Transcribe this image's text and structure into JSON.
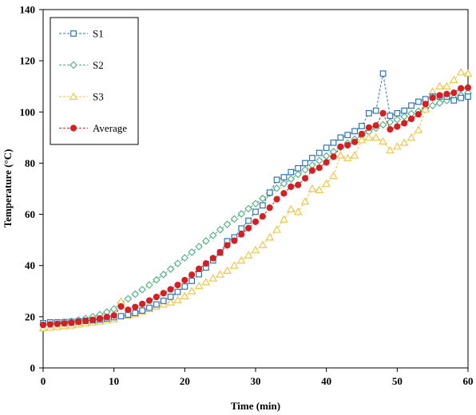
{
  "chart_data": {
    "type": "line",
    "xlabel": "Time (min)",
    "ylabel": "Temperature  (°C)",
    "xlim": [
      0,
      60
    ],
    "ylim": [
      0,
      140
    ],
    "xticks": [
      0,
      10,
      20,
      30,
      40,
      50,
      60
    ],
    "yticks": [
      0,
      20,
      40,
      60,
      80,
      100,
      120,
      140
    ],
    "grid": false,
    "legend": "top-left",
    "x": [
      0,
      1,
      2,
      3,
      4,
      5,
      6,
      7,
      8,
      9,
      10,
      11,
      12,
      13,
      14,
      15,
      16,
      17,
      18,
      19,
      20,
      21,
      22,
      23,
      24,
      25,
      26,
      27,
      28,
      29,
      30,
      31,
      32,
      33,
      34,
      35,
      36,
      37,
      38,
      39,
      40,
      41,
      42,
      43,
      44,
      45,
      46,
      47,
      48,
      49,
      50,
      51,
      52,
      53,
      54,
      55,
      56,
      57,
      58,
      59,
      60
    ],
    "series": [
      {
        "name": "S1",
        "color": "#2e75b6",
        "marker": "square",
        "values": [
          17.5,
          17.8,
          17.8,
          17.9,
          18.0,
          18.2,
          18.4,
          18.6,
          18.9,
          19.3,
          19.8,
          20.2,
          20.8,
          21.5,
          22.4,
          23.5,
          24.8,
          26.2,
          27.8,
          29.7,
          31.8,
          34.0,
          36.6,
          39.2,
          42.0,
          45.0,
          49.5,
          51.0,
          54.5,
          57.5,
          61.0,
          63.5,
          68.5,
          73.5,
          74.5,
          76.5,
          78.0,
          80.0,
          82.0,
          84.0,
          86.0,
          88.0,
          90.0,
          91.0,
          92.5,
          94.5,
          99.5,
          100.5,
          115.0,
          98.5,
          99.5,
          100.5,
          102.5,
          104.0,
          105.0,
          106.0,
          106.0,
          106.0,
          104.5,
          105.5,
          106.0
        ]
      },
      {
        "name": "S2",
        "color": "#4daf7c",
        "marker": "diamond",
        "values": [
          17.0,
          17.3,
          17.5,
          17.8,
          18.2,
          18.7,
          19.3,
          20.0,
          20.8,
          21.8,
          23.0,
          25.5,
          27.0,
          28.8,
          30.6,
          32.4,
          34.4,
          36.5,
          38.6,
          40.8,
          43.0,
          45.2,
          47.4,
          49.6,
          51.8,
          54.0,
          56.1,
          58.2,
          60.2,
          62.2,
          64.2,
          66.2,
          68.2,
          70.2,
          72.0,
          73.8,
          75.6,
          77.4,
          79.2,
          81.0,
          82.8,
          84.5,
          86.2,
          87.8,
          89.3,
          90.8,
          92.3,
          93.7,
          95.0,
          96.0,
          97.0,
          98.2,
          99.3,
          100.3,
          101.3,
          102.5,
          103.5,
          104.5,
          105.5,
          106.5,
          107.5
        ]
      },
      {
        "name": "S3",
        "color": "#f2c13a",
        "marker": "triangle",
        "values": [
          15.5,
          15.8,
          16.0,
          16.3,
          16.6,
          17.0,
          17.4,
          17.8,
          18.2,
          18.6,
          19.0,
          26.0,
          20.5,
          21.0,
          22.0,
          23.0,
          24.0,
          24.8,
          25.6,
          26.5,
          28.0,
          30.0,
          32.0,
          33.5,
          35.0,
          36.5,
          38.0,
          40.0,
          42.0,
          44.0,
          46.0,
          48.0,
          51.0,
          54.0,
          58.0,
          62.0,
          61.0,
          65.0,
          70.0,
          69.5,
          72.0,
          75.0,
          83.0,
          82.0,
          83.0,
          89.0,
          90.0,
          90.0,
          88.5,
          85.0,
          86.5,
          88.0,
          90.0,
          93.0,
          101.0,
          108.0,
          110.0,
          110.0,
          112.5,
          115.5,
          115.0
        ]
      },
      {
        "name": "Average",
        "color": "#d42020",
        "marker": "circle",
        "values": [
          16.8,
          17.0,
          17.2,
          17.4,
          17.6,
          18.0,
          18.4,
          18.8,
          19.3,
          19.9,
          20.5,
          24.0,
          22.7,
          23.8,
          25.0,
          26.3,
          27.7,
          29.2,
          30.7,
          32.4,
          34.3,
          36.4,
          38.7,
          40.8,
          42.9,
          45.2,
          47.9,
          49.7,
          52.2,
          54.6,
          57.1,
          59.2,
          62.6,
          65.9,
          68.2,
          70.8,
          71.5,
          74.1,
          77.1,
          78.2,
          80.3,
          82.5,
          86.4,
          87.0,
          88.3,
          91.4,
          93.9,
          94.7,
          99.5,
          93.2,
          94.3,
          95.6,
          97.3,
          99.1,
          103.1,
          105.5,
          106.5,
          107.0,
          107.5,
          109.2,
          109.5
        ]
      }
    ]
  }
}
